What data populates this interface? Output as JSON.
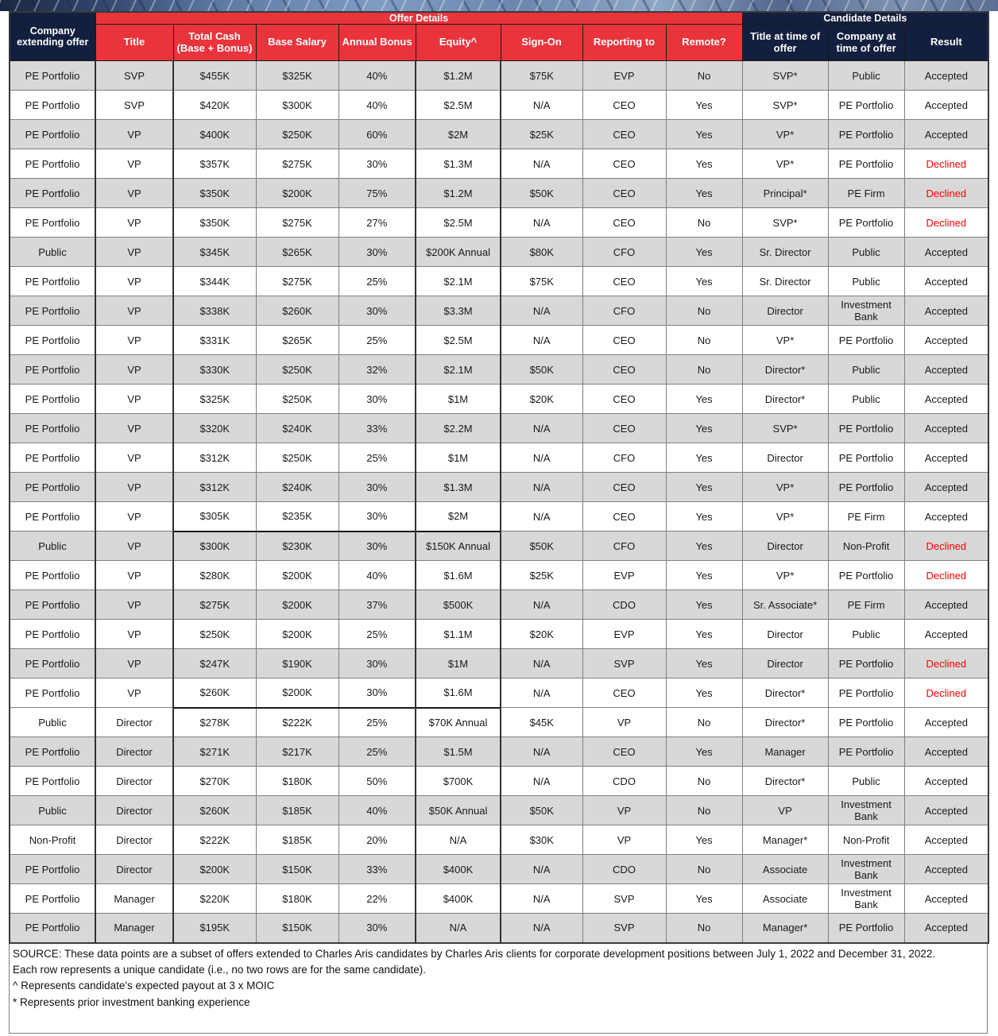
{
  "colors": {
    "header_red": "#e9343c",
    "header_navy": "#131f3e",
    "shaded_row": "#d8d8d8",
    "declined_text": "#ff0000",
    "grid_border": "#7f7f7f"
  },
  "table": {
    "groups": [
      {
        "label": "Offer Details"
      },
      {
        "label": "Candidate Details"
      }
    ],
    "columns": [
      {
        "key": "company",
        "label": "Company extending offer"
      },
      {
        "key": "title",
        "label": "Title"
      },
      {
        "key": "total-cash",
        "label": "Total Cash (Base + Bonus)"
      },
      {
        "key": "base-salary",
        "label": "Base Salary"
      },
      {
        "key": "annual-bonus",
        "label": "Annual Bonus"
      },
      {
        "key": "equity",
        "label": "Equity^"
      },
      {
        "key": "sign-on",
        "label": "Sign-On"
      },
      {
        "key": "reporting-to",
        "label": "Reporting to"
      },
      {
        "key": "remote",
        "label": "Remote?"
      },
      {
        "key": "title-at-offer",
        "label": "Title at time of offer"
      },
      {
        "key": "company-at-offer",
        "label": "Company at time of offer"
      },
      {
        "key": "result",
        "label": "Result"
      }
    ],
    "rows": [
      {
        "shaded": true,
        "divider_above": false,
        "cells": [
          "PE Portfolio",
          "SVP",
          "$455K",
          "$325K",
          "40%",
          "$1.2M",
          "$75K",
          "EVP",
          "No",
          "SVP*",
          "Public",
          "Accepted"
        ]
      },
      {
        "shaded": false,
        "divider_above": false,
        "cells": [
          "PE Portfolio",
          "SVP",
          "$420K",
          "$300K",
          "40%",
          "$2.5M",
          "N/A",
          "CEO",
          "Yes",
          "SVP*",
          "PE Portfolio",
          "Accepted"
        ]
      },
      {
        "shaded": true,
        "divider_above": false,
        "cells": [
          "PE Portfolio",
          "VP",
          "$400K",
          "$250K",
          "60%",
          "$2M",
          "$25K",
          "CEO",
          "Yes",
          "VP*",
          "PE Portfolio",
          "Accepted"
        ]
      },
      {
        "shaded": false,
        "divider_above": false,
        "cells": [
          "PE Portfolio",
          "VP",
          "$357K",
          "$275K",
          "30%",
          "$1.3M",
          "N/A",
          "CEO",
          "Yes",
          "VP*",
          "PE Portfolio",
          "Declined"
        ]
      },
      {
        "shaded": true,
        "divider_above": false,
        "cells": [
          "PE Portfolio",
          "VP",
          "$350K",
          "$200K",
          "75%",
          "$1.2M",
          "$50K",
          "CEO",
          "Yes",
          "Principal*",
          "PE Firm",
          "Declined"
        ]
      },
      {
        "shaded": false,
        "divider_above": false,
        "cells": [
          "PE Portfolio",
          "VP",
          "$350K",
          "$275K",
          "27%",
          "$2.5M",
          "N/A",
          "CEO",
          "No",
          "SVP*",
          "PE Portfolio",
          "Declined"
        ]
      },
      {
        "shaded": true,
        "divider_above": false,
        "cells": [
          "Public",
          "VP",
          "$345K",
          "$265K",
          "30%",
          "$200K Annual",
          "$80K",
          "CFO",
          "Yes",
          "Sr. Director",
          "Public",
          "Accepted"
        ]
      },
      {
        "shaded": false,
        "divider_above": false,
        "cells": [
          "PE Portfolio",
          "VP",
          "$344K",
          "$275K",
          "25%",
          "$2.1M",
          "$75K",
          "CEO",
          "Yes",
          "Sr. Director",
          "Public",
          "Accepted"
        ]
      },
      {
        "shaded": true,
        "divider_above": false,
        "cells": [
          "PE Portfolio",
          "VP",
          "$338K",
          "$260K",
          "30%",
          "$3.3M",
          "N/A",
          "CFO",
          "No",
          "Director",
          "Investment Bank",
          "Accepted"
        ]
      },
      {
        "shaded": false,
        "divider_above": false,
        "cells": [
          "PE Portfolio",
          "VP",
          "$331K",
          "$265K",
          "25%",
          "$2.5M",
          "N/A",
          "CEO",
          "No",
          "VP*",
          "PE Portfolio",
          "Accepted"
        ]
      },
      {
        "shaded": true,
        "divider_above": false,
        "cells": [
          "PE Portfolio",
          "VP",
          "$330K",
          "$250K",
          "32%",
          "$2.1M",
          "$50K",
          "CEO",
          "No",
          "Director*",
          "Public",
          "Accepted"
        ]
      },
      {
        "shaded": false,
        "divider_above": false,
        "cells": [
          "PE Portfolio",
          "VP",
          "$325K",
          "$250K",
          "30%",
          "$1M",
          "$20K",
          "CEO",
          "Yes",
          "Director*",
          "Public",
          "Accepted"
        ]
      },
      {
        "shaded": true,
        "divider_above": false,
        "cells": [
          "PE Portfolio",
          "VP",
          "$320K",
          "$240K",
          "33%",
          "$2.2M",
          "N/A",
          "CEO",
          "Yes",
          "SVP*",
          "PE Portfolio",
          "Accepted"
        ]
      },
      {
        "shaded": false,
        "divider_above": false,
        "cells": [
          "PE Portfolio",
          "VP",
          "$312K",
          "$250K",
          "25%",
          "$1M",
          "N/A",
          "CFO",
          "Yes",
          "Director",
          "PE Portfolio",
          "Accepted"
        ]
      },
      {
        "shaded": true,
        "divider_above": false,
        "cells": [
          "PE Portfolio",
          "VP",
          "$312K",
          "$240K",
          "30%",
          "$1.3M",
          "N/A",
          "CEO",
          "Yes",
          "VP*",
          "PE Portfolio",
          "Accepted"
        ]
      },
      {
        "shaded": false,
        "divider_above": false,
        "cells": [
          "PE Portfolio",
          "VP",
          "$305K",
          "$235K",
          "30%",
          "$2M",
          "N/A",
          "CEO",
          "Yes",
          "VP*",
          "PE Firm",
          "Accepted"
        ]
      },
      {
        "shaded": true,
        "divider_above": true,
        "cells": [
          "Public",
          "VP",
          "$300K",
          "$230K",
          "30%",
          "$150K Annual",
          "$50K",
          "CFO",
          "Yes",
          "Director",
          "Non-Profit",
          "Declined"
        ]
      },
      {
        "shaded": false,
        "divider_above": false,
        "cells": [
          "PE Portfolio",
          "VP",
          "$280K",
          "$200K",
          "40%",
          "$1.6M",
          "$25K",
          "EVP",
          "Yes",
          "VP*",
          "PE Portfolio",
          "Declined"
        ]
      },
      {
        "shaded": true,
        "divider_above": false,
        "cells": [
          "PE Portfolio",
          "VP",
          "$275K",
          "$200K",
          "37%",
          "$500K",
          "N/A",
          "CDO",
          "Yes",
          "Sr. Associate*",
          "PE Firm",
          "Accepted"
        ]
      },
      {
        "shaded": false,
        "divider_above": false,
        "cells": [
          "PE Portfolio",
          "VP",
          "$250K",
          "$200K",
          "25%",
          "$1.1M",
          "$20K",
          "EVP",
          "Yes",
          "Director",
          "Public",
          "Accepted"
        ]
      },
      {
        "shaded": true,
        "divider_above": false,
        "cells": [
          "PE Portfolio",
          "VP",
          "$247K",
          "$190K",
          "30%",
          "$1M",
          "N/A",
          "SVP",
          "Yes",
          "Director",
          "PE Portfolio",
          "Declined"
        ]
      },
      {
        "shaded": false,
        "divider_above": false,
        "cells": [
          "PE Portfolio",
          "VP",
          "$260K",
          "$200K",
          "30%",
          "$1.6M",
          "N/A",
          "CEO",
          "Yes",
          "Director*",
          "PE Portfolio",
          "Declined"
        ]
      },
      {
        "shaded": false,
        "divider_above": true,
        "cells": [
          "Public",
          "Director",
          "$278K",
          "$222K",
          "25%",
          "$70K Annual",
          "$45K",
          "VP",
          "No",
          "Director*",
          "PE Portfolio",
          "Accepted"
        ]
      },
      {
        "shaded": true,
        "divider_above": false,
        "cells": [
          "PE Portfolio",
          "Director",
          "$271K",
          "$217K",
          "25%",
          "$1.5M",
          "N/A",
          "CEO",
          "Yes",
          "Manager",
          "PE Portfolio",
          "Accepted"
        ]
      },
      {
        "shaded": false,
        "divider_above": false,
        "cells": [
          "PE Portfolio",
          "Director",
          "$270K",
          "$180K",
          "50%",
          "$700K",
          "N/A",
          "CDO",
          "No",
          "Director*",
          "Public",
          "Accepted"
        ]
      },
      {
        "shaded": true,
        "divider_above": false,
        "cells": [
          "Public",
          "Director",
          "$260K",
          "$185K",
          "40%",
          "$50K Annual",
          "$50K",
          "VP",
          "No",
          "VP",
          "Investment Bank",
          "Accepted"
        ]
      },
      {
        "shaded": false,
        "divider_above": false,
        "cells": [
          "Non-Profit",
          "Director",
          "$222K",
          "$185K",
          "20%",
          "N/A",
          "$30K",
          "VP",
          "Yes",
          "Manager*",
          "Non-Profit",
          "Accepted"
        ]
      },
      {
        "shaded": true,
        "divider_above": false,
        "cells": [
          "PE Portfolio",
          "Director",
          "$200K",
          "$150K",
          "33%",
          "$400K",
          "N/A",
          "CDO",
          "No",
          "Associate",
          "Investment Bank",
          "Accepted"
        ]
      },
      {
        "shaded": false,
        "divider_above": false,
        "cells": [
          "PE Portfolio",
          "Manager",
          "$220K",
          "$180K",
          "22%",
          "$400K",
          "N/A",
          "SVP",
          "Yes",
          "Associate",
          "Investment Bank",
          "Accepted"
        ]
      },
      {
        "shaded": true,
        "divider_above": false,
        "cells": [
          "PE Portfolio",
          "Manager",
          "$195K",
          "$150K",
          "30%",
          "N/A",
          "N/A",
          "SVP",
          "No",
          "Manager*",
          "PE Portfolio",
          "Accepted"
        ]
      }
    ]
  },
  "footnotes": {
    "source": "SOURCE: These data points are a subset of offers extended to Charles Aris candidates by Charles Aris clients for corporate development positions between July 1, 2022 and December 31, 2022.",
    "note_unique": "Each row represents a unique candidate (i.e., no two rows are for the same candidate).",
    "note_equity": "^ Represents candidate's expected payout at 3 x MOIC",
    "note_asterisk": "* Represents prior investment banking experience"
  }
}
